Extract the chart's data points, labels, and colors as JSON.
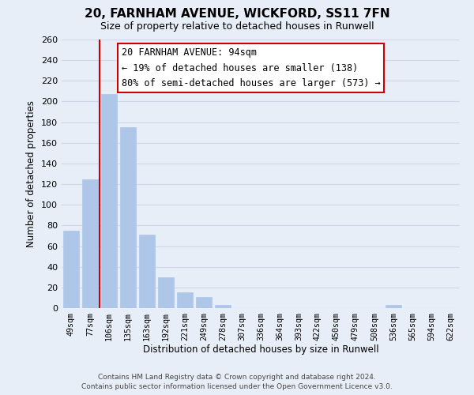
{
  "title_line1": "20, FARNHAM AVENUE, WICKFORD, SS11 7FN",
  "title_line2": "Size of property relative to detached houses in Runwell",
  "xlabel": "Distribution of detached houses by size in Runwell",
  "ylabel": "Number of detached properties",
  "categories": [
    "49sqm",
    "77sqm",
    "106sqm",
    "135sqm",
    "163sqm",
    "192sqm",
    "221sqm",
    "249sqm",
    "278sqm",
    "307sqm",
    "336sqm",
    "364sqm",
    "393sqm",
    "422sqm",
    "450sqm",
    "479sqm",
    "508sqm",
    "536sqm",
    "565sqm",
    "594sqm",
    "622sqm"
  ],
  "values": [
    75,
    125,
    207,
    175,
    71,
    30,
    15,
    11,
    3,
    0,
    0,
    0,
    0,
    0,
    0,
    0,
    0,
    3,
    0,
    0,
    0
  ],
  "bar_color": "#aec6e8",
  "bar_edge_color": "#aec6e8",
  "vline_x_idx": 1.5,
  "vline_color": "#cc0000",
  "annotation_line1": "20 FARNHAM AVENUE: 94sqm",
  "annotation_line2": "← 19% of detached houses are smaller (138)",
  "annotation_line3": "80% of semi-detached houses are larger (573) →",
  "ylim": [
    0,
    260
  ],
  "yticks": [
    0,
    20,
    40,
    60,
    80,
    100,
    120,
    140,
    160,
    180,
    200,
    220,
    240,
    260
  ],
  "grid_color": "#d0d8e8",
  "background_color": "#e8eef8",
  "footer_line1": "Contains HM Land Registry data © Crown copyright and database right 2024.",
  "footer_line2": "Contains public sector information licensed under the Open Government Licence v3.0."
}
